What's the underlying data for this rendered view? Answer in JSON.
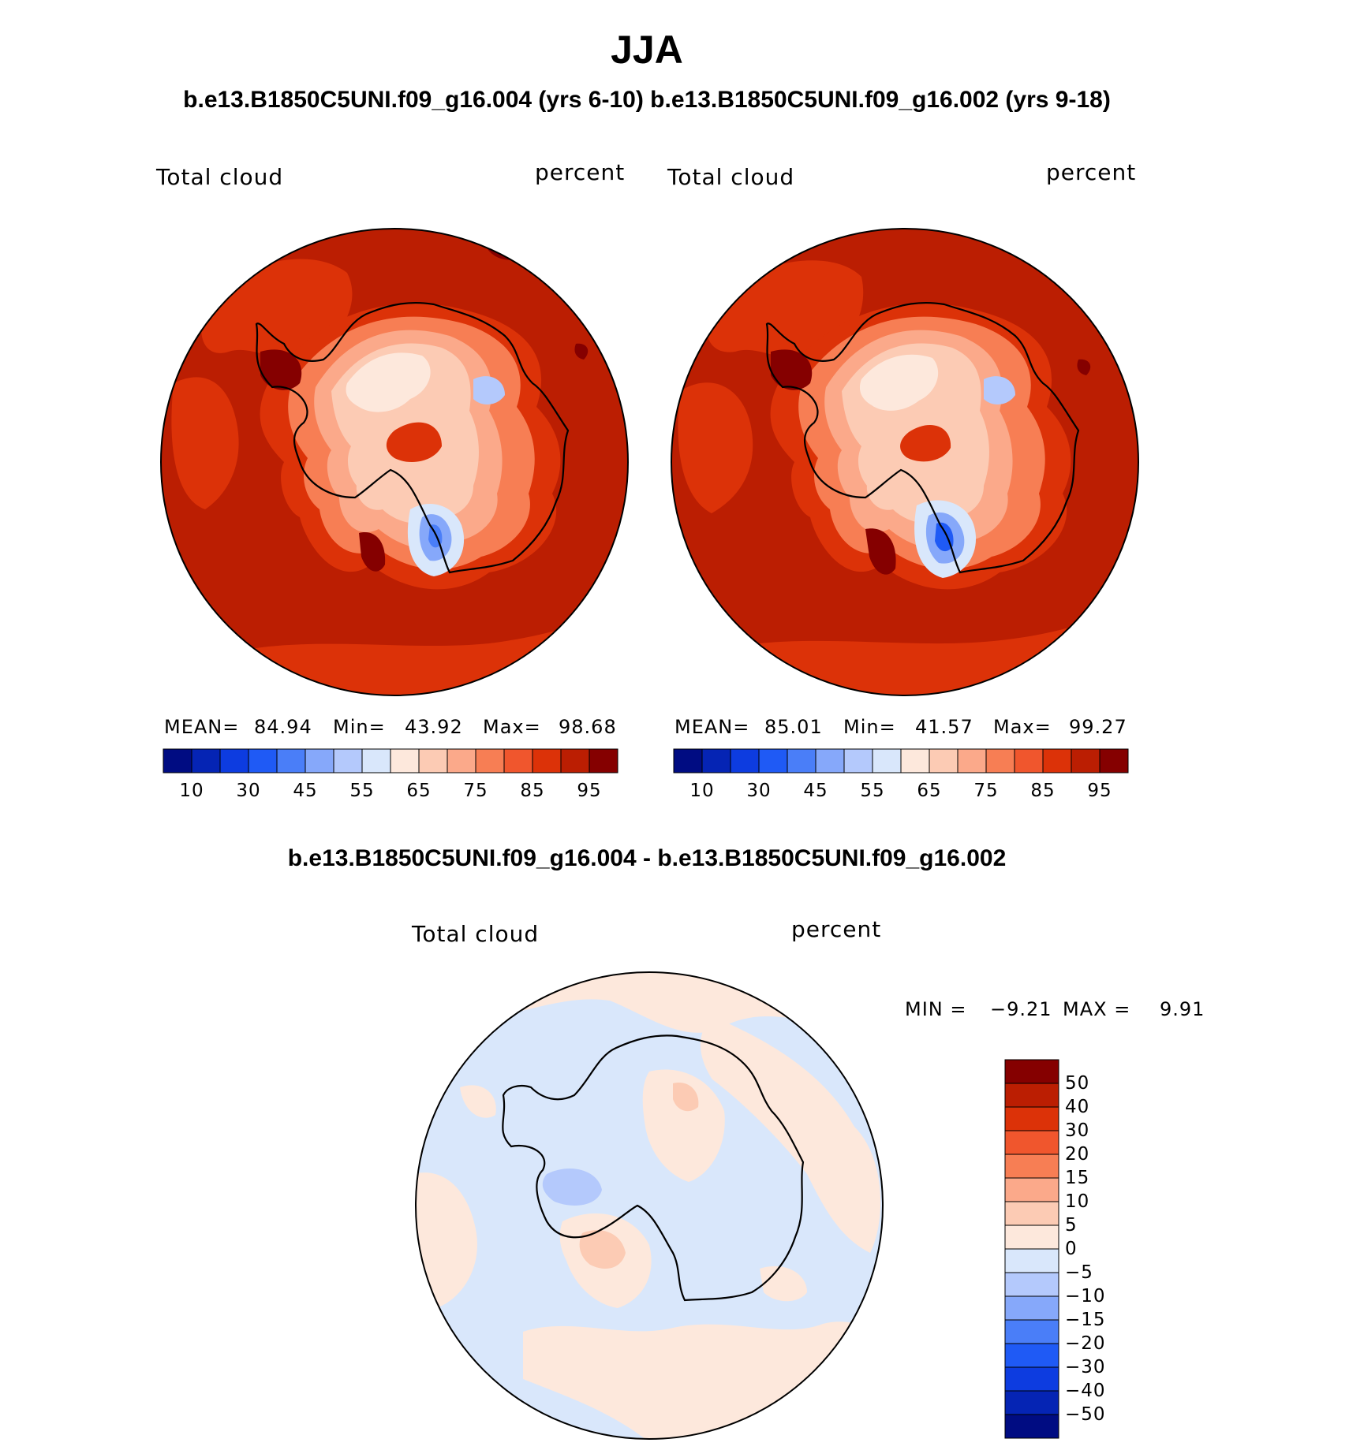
{
  "title": "JJA",
  "subtitle": "b.e13.B1850C5UNI.f09_g16.004 (yrs 6-10) b.e13.B1850C5UNI.f09_g16.002 (yrs 9-18)",
  "colors": {
    "seq": [
      "#000c82",
      "#0524b4",
      "#0d3ce0",
      "#1f5af5",
      "#4a7ef8",
      "#86a8fa",
      "#b4c9fc",
      "#d9e7fb",
      "#fde8dc",
      "#fccbb4",
      "#fba98a",
      "#f77e54",
      "#f0562d",
      "#dc3208",
      "#bb1e02",
      "#850000"
    ],
    "div": [
      "#850000",
      "#bb1e02",
      "#dc3208",
      "#f0562d",
      "#f77e54",
      "#fba98a",
      "#fccbb4",
      "#fde8dc",
      "#d9e7fb",
      "#b4c9fc",
      "#86a8fa",
      "#4a7ef8",
      "#1f5af5",
      "#0d3ce0",
      "#0524b4",
      "#000c82"
    ]
  },
  "panels": [
    {
      "variable": "Total cloud",
      "units": "percent",
      "mean_label": "MEAN=",
      "mean": "84.94",
      "min_label": "Min=",
      "min": "43.92",
      "max_label": "Max=",
      "max": "98.68",
      "ticks": [
        "10",
        "30",
        "45",
        "55",
        "65",
        "75",
        "85",
        "95"
      ]
    },
    {
      "variable": "Total cloud",
      "units": "percent",
      "mean_label": "MEAN=",
      "mean": "85.01",
      "min_label": "Min=",
      "min": "41.57",
      "max_label": "Max=",
      "max": "99.27",
      "ticks": [
        "10",
        "30",
        "45",
        "55",
        "65",
        "75",
        "85",
        "95"
      ]
    }
  ],
  "diff": {
    "subtitle": "b.e13.B1850C5UNI.f09_g16.004 - b.e13.B1850C5UNI.f09_g16.002",
    "variable": "Total cloud",
    "units": "percent",
    "min_label": "MIN =",
    "min": "−9.21",
    "max_label": "MAX =",
    "max": "9.91",
    "ticks": [
      "50",
      "40",
      "30",
      "20",
      "15",
      "10",
      "5",
      "0",
      "−5",
      "−10",
      "−15",
      "−20",
      "−30",
      "−40",
      "−50"
    ]
  }
}
